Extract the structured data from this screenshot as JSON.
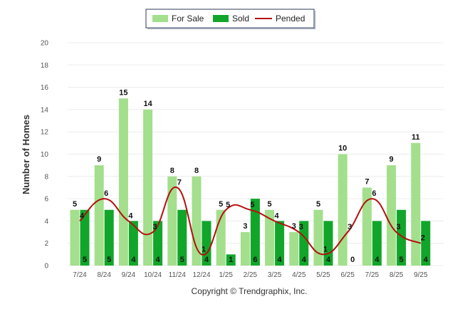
{
  "chart_data": {
    "type": "bar",
    "ylabel": "Number of Homes",
    "ylim": [
      0,
      20
    ],
    "y_ticks": [
      0,
      2,
      4,
      6,
      8,
      10,
      12,
      14,
      16,
      18,
      20
    ],
    "categories": [
      "7/24",
      "8/24",
      "9/24",
      "10/24",
      "11/24",
      "12/24",
      "1/25",
      "2/25",
      "3/25",
      "4/25",
      "5/25",
      "6/25",
      "7/25",
      "8/25",
      "9/25"
    ],
    "series": [
      {
        "name": "For Sale",
        "kind": "bar",
        "color": "#a3df8c",
        "values": [
          5,
          9,
          15,
          14,
          8,
          8,
          5,
          3,
          5,
          3,
          5,
          10,
          7,
          9,
          11
        ]
      },
      {
        "name": "Sold",
        "kind": "bar",
        "color": "#11a62a",
        "values": [
          5,
          5,
          4,
          4,
          5,
          4,
          1,
          6,
          4,
          4,
          4,
          0,
          4,
          5,
          4
        ]
      },
      {
        "name": "Pended",
        "kind": "line",
        "color": "#b50f0f",
        "values": [
          4,
          6,
          4,
          3,
          7,
          1,
          5,
          5,
          4,
          3,
          1,
          3,
          6,
          3,
          2
        ]
      }
    ],
    "legend_position": "top-center",
    "grid": true
  },
  "footer": {
    "copyright": "Copyright © Trendgraphix, Inc."
  }
}
